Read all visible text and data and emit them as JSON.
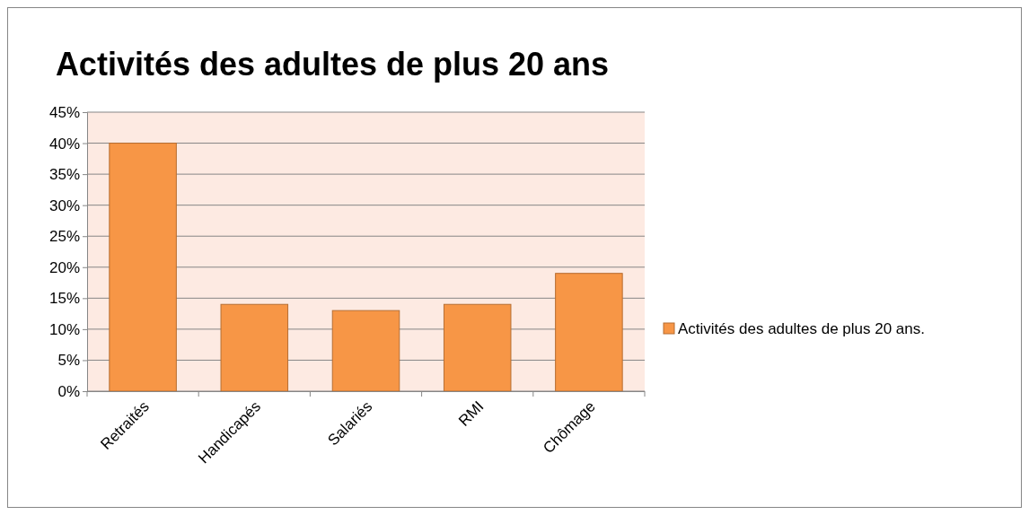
{
  "chart_data": {
    "type": "bar",
    "title": "Activités des adultes de plus 20 ans",
    "categories": [
      "Retraités",
      "Handicapés",
      "Salariés",
      "RMI",
      "Chômage"
    ],
    "series": [
      {
        "name": "Activités des adultes de plus 20 ans.",
        "color": "#f79646",
        "values": [
          40,
          14,
          13,
          14,
          19
        ]
      }
    ],
    "ylim": [
      0,
      45
    ],
    "yticks": [
      {
        "value": 0,
        "label": "0%"
      },
      {
        "value": 5,
        "label": "5%"
      },
      {
        "value": 10,
        "label": "10%"
      },
      {
        "value": 15,
        "label": "15%"
      },
      {
        "value": 20,
        "label": "20%"
      },
      {
        "value": 25,
        "label": "25%"
      },
      {
        "value": 30,
        "label": "30%"
      },
      {
        "value": 35,
        "label": "35%"
      },
      {
        "value": 40,
        "label": "40%"
      },
      {
        "value": 45,
        "label": "45%"
      }
    ],
    "grid": "y",
    "legend": "right"
  }
}
